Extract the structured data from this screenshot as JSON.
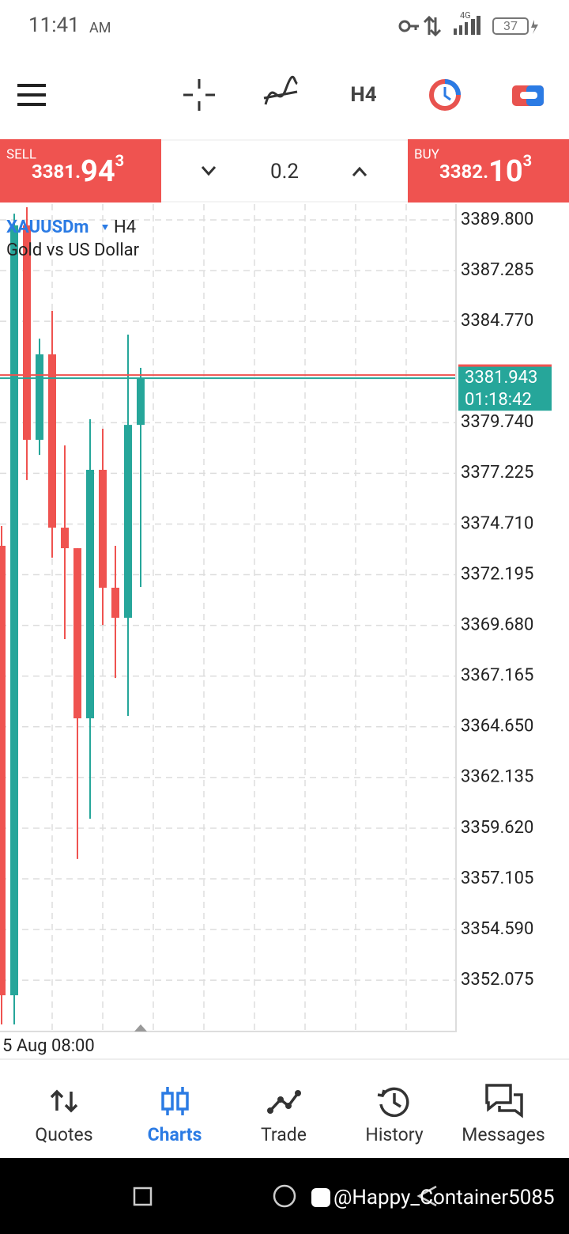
{
  "status_bar": {
    "time": "11:41",
    "ampm": "AM",
    "network": "4G",
    "battery": "37"
  },
  "toolbar": {
    "timeframe": "H4"
  },
  "trade_bar": {
    "sell": {
      "label": "SELL",
      "price_prefix": "3381.",
      "price_big": "94",
      "price_sup": "3"
    },
    "volume": "0.2",
    "buy": {
      "label": "BUY",
      "price_prefix": "3382.",
      "price_big": "10",
      "price_sup": "3"
    }
  },
  "chart_data": {
    "type": "candlestick",
    "title": "XAUUSDm",
    "timeframe": "H4",
    "subtitle": "Gold vs US Dollar",
    "time_label": "5 Aug 08:00",
    "open": [
      3373.63,
      3351.33,
      3389.53,
      3378.89,
      3383.13,
      3374.53,
      3373.51,
      3365.07,
      3377.4,
      3371.55,
      3370.06,
      3379.63
    ],
    "high": [
      3374.61,
      3390.11,
      3390.43,
      3383.91,
      3385.29,
      3378.61,
      3373.51,
      3379.91,
      3379.44,
      3373.63,
      3384.11,
      3382.46
    ],
    "low": [
      3349.88,
      3349.88,
      3376.89,
      3378.14,
      3373.04,
      3369.0,
      3358.09,
      3360.09,
      3369.7,
      3367.07,
      3365.19,
      3371.59
    ],
    "close": [
      3351.33,
      3389.53,
      3378.89,
      3383.13,
      3374.53,
      3373.51,
      3365.07,
      3377.4,
      3371.55,
      3370.06,
      3379.63,
      3381.94
    ],
    "up_color": "#26a69a",
    "down_color": "#ef5350",
    "bid": 3381.943,
    "ask": 3382.103,
    "countdown": "01:18:42",
    "ylim": [
      3349.57,
      3390.585
    ],
    "yticks": [
      {
        "value": 3389.8,
        "label": "3389.800"
      },
      3387.285,
      {
        "value": 3384.77,
        "label": "3384.770"
      },
      {
        "value": 3379.74,
        "label": "3379.740"
      },
      3377.225,
      {
        "value": 3374.71,
        "label": "3374.710"
      },
      3372.195,
      {
        "value": 3369.68,
        "label": "3369.680"
      },
      3367.165,
      {
        "value": 3364.65,
        "label": "3364.650"
      },
      3362.135,
      {
        "value": 3359.62,
        "label": "3359.620"
      },
      3357.105,
      {
        "value": 3354.59,
        "label": "3354.590"
      },
      3352.075
    ],
    "grid": true
  },
  "nav": [
    {
      "label": "Quotes"
    },
    {
      "label": "Charts"
    },
    {
      "label": "Trade"
    },
    {
      "label": "History"
    },
    {
      "label": "Messages"
    }
  ],
  "watermark": "@Happy_Container5085"
}
